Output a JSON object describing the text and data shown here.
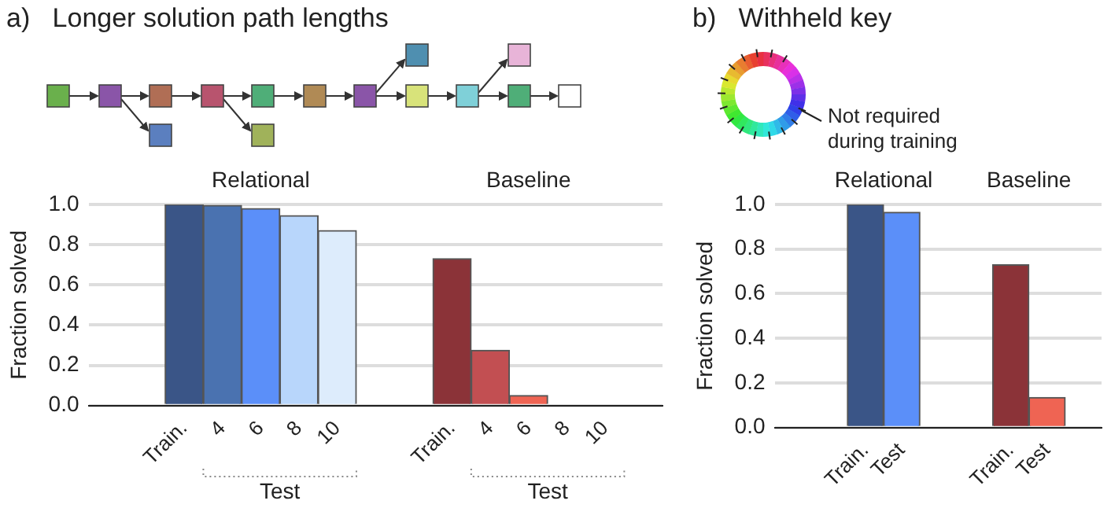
{
  "chart_data": [
    {
      "type": "bar",
      "title": "a)   Longer solution path lengths",
      "ylabel": "Fraction solved",
      "categories": [
        null,
        null,
        "Train.",
        "4",
        "6",
        "8",
        "10",
        null,
        null,
        "Train.",
        "4",
        "6",
        "8",
        "10",
        null
      ],
      "values": [
        null,
        null,
        1.0,
        0.995,
        0.98,
        0.945,
        0.87,
        null,
        null,
        0.73,
        0.275,
        0.05,
        0,
        0,
        null
      ],
      "colors": [
        null,
        null,
        "#3a5587",
        "#4a72b0",
        "#5b8ff9",
        "#b8d6fb",
        "#ddecfc",
        null,
        null,
        "#8b3338",
        "#c24f52",
        "#ef6453",
        "#f4a090",
        "#f8c8b8",
        null
      ],
      "ylim": [
        0,
        1.0
      ],
      "yticks": [
        {
          "value": 0,
          "label": "0.0"
        },
        {
          "value": 0.2,
          "label": "0.2"
        },
        {
          "value": 0.4,
          "label": "0.4"
        },
        {
          "value": 0.6,
          "label": "0.6"
        },
        {
          "value": 0.8,
          "label": "0.8"
        },
        {
          "value": 1.0,
          "label": "1.0"
        }
      ],
      "grid": "y",
      "legend": false,
      "annotations": [
        "Relational",
        "Baseline",
        "Test",
        "Test"
      ]
    },
    {
      "type": "bar",
      "title": "b)   Withheld key",
      "ylabel": "Fraction solved",
      "categories": [
        null,
        null,
        "Train.",
        "Test",
        null,
        null,
        "Train.",
        "Test",
        null
      ],
      "values": [
        null,
        null,
        1.0,
        0.965,
        null,
        null,
        0.73,
        0.135,
        null
      ],
      "colors": [
        null,
        null,
        "#3a5587",
        "#5b8ff9",
        null,
        null,
        "#8b3338",
        "#ef6453",
        null
      ],
      "ylim": [
        0,
        1.0
      ],
      "yticks": [
        {
          "value": 0,
          "label": "0.0"
        },
        {
          "value": 0.2,
          "label": "0.2"
        },
        {
          "value": 0.4,
          "label": "0.4"
        },
        {
          "value": 0.6,
          "label": "0.6"
        },
        {
          "value": 0.8,
          "label": "0.8"
        },
        {
          "value": 1.0,
          "label": "1.0"
        }
      ],
      "grid": "y",
      "legend": false,
      "annotations": [
        "Relational",
        "Baseline",
        "Not required during training"
      ]
    }
  ]
}
